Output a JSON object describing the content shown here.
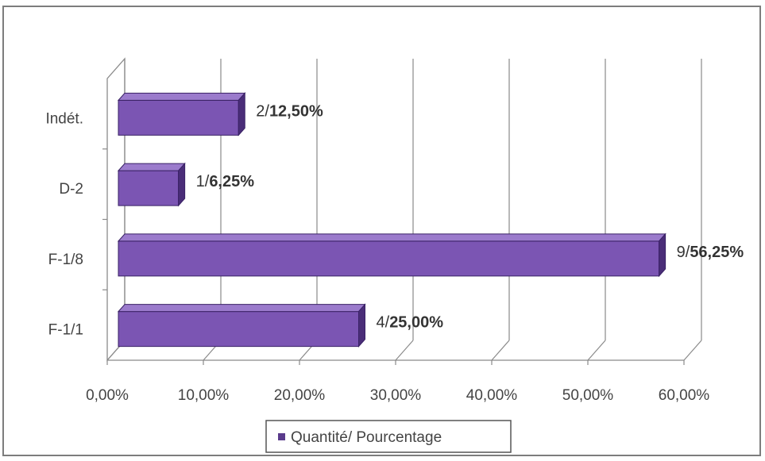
{
  "chart_data": {
    "type": "bar",
    "orientation": "horizontal",
    "three_d": true,
    "categories": [
      "F-1/1",
      "F-1/8",
      "D-2",
      "Indét."
    ],
    "series": [
      {
        "name": "Quantité/ Pourcentage",
        "values": [
          25.0,
          56.25,
          6.25,
          12.5
        ],
        "counts": [
          4,
          9,
          1,
          2
        ],
        "labels": [
          {
            "count": "4/",
            "pct": "25,00%"
          },
          {
            "count": "9/",
            "pct": "56,25%"
          },
          {
            "count": "1/",
            "pct": "6,25%"
          },
          {
            "count": "2/",
            "pct": "12,50%"
          }
        ]
      }
    ],
    "x_ticks": [
      "0,00%",
      "10,00%",
      "20,00%",
      "30,00%",
      "40,00%",
      "50,00%",
      "60,00%"
    ],
    "xlim": [
      0,
      60
    ],
    "grid": true,
    "legend_position": "bottom",
    "colors": {
      "bar": "#7b55b3",
      "bar_dark": "#4a2d78",
      "bar_edge": "#3a2266",
      "grid": "#8a8a8a",
      "text": "#444444"
    }
  }
}
